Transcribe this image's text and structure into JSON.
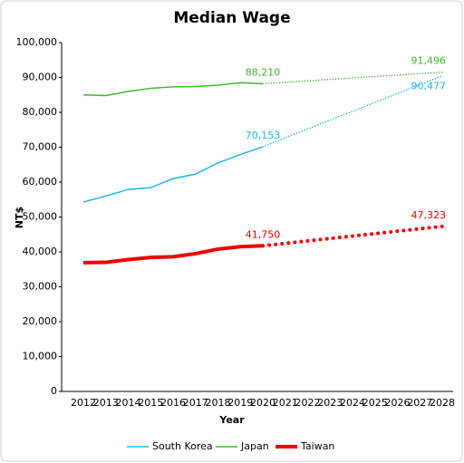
{
  "chart_data": {
    "type": "line",
    "title": "Median Wage",
    "x_label": "Year",
    "y_label": "NT$",
    "categories": [
      "2012",
      "2013",
      "2014",
      "2015",
      "2016",
      "2017",
      "2018",
      "2019",
      "2020",
      "2021",
      "2022",
      "2023",
      "2024",
      "2025",
      "2026",
      "2027",
      "2028"
    ],
    "forecast_from": "2020",
    "series": [
      {
        "name": "South Korea",
        "color": "#1fb8ec",
        "width": 1.5,
        "values": [
          54300,
          56000,
          57900,
          58400,
          61000,
          62300,
          65500,
          67900,
          70153,
          72694,
          75234,
          77775,
          80315,
          82856,
          85396,
          87937,
          90477
        ],
        "value_labels": [
          null,
          null,
          null,
          null,
          null,
          null,
          null,
          null,
          "70,153",
          null,
          null,
          null,
          null,
          null,
          null,
          null,
          "90,477"
        ]
      },
      {
        "name": "Japan",
        "color": "#3dbb2a",
        "width": 1.5,
        "values": [
          85000,
          84800,
          86000,
          86900,
          87300,
          87400,
          87800,
          88500,
          88210,
          88621,
          89032,
          89442,
          89853,
          90264,
          90675,
          91085,
          91496
        ],
        "value_labels": [
          null,
          null,
          null,
          null,
          null,
          null,
          null,
          null,
          "88,210",
          null,
          null,
          null,
          null,
          null,
          null,
          null,
          "91,496"
        ]
      },
      {
        "name": "Taiwan",
        "color": "#ef0000",
        "width": 4,
        "values": [
          36900,
          37000,
          37800,
          38400,
          38600,
          39500,
          40800,
          41500,
          41750,
          42447,
          43143,
          43840,
          44537,
          45233,
          45930,
          46626,
          47323
        ],
        "value_labels": [
          null,
          null,
          null,
          null,
          null,
          null,
          null,
          null,
          "41,750",
          null,
          null,
          null,
          null,
          null,
          null,
          null,
          "47,323"
        ]
      }
    ],
    "ylim": [
      0,
      100000
    ],
    "yticks": [
      0,
      {
        "value": 10000,
        "label": "10,000"
      },
      {
        "value": 20000,
        "label": "20,000"
      },
      {
        "value": 30000,
        "label": "30,000"
      },
      {
        "value": 40000,
        "label": "40,000"
      },
      {
        "value": 50000,
        "label": "50,000"
      },
      {
        "value": 60000,
        "label": "60,000"
      },
      {
        "value": 70000,
        "label": "70,000"
      },
      {
        "value": 80000,
        "label": "80,000"
      },
      {
        "value": 90000,
        "label": "90,000"
      },
      {
        "value": 100000,
        "label": "100,000"
      }
    ],
    "grid": false,
    "legend": "bottom"
  }
}
